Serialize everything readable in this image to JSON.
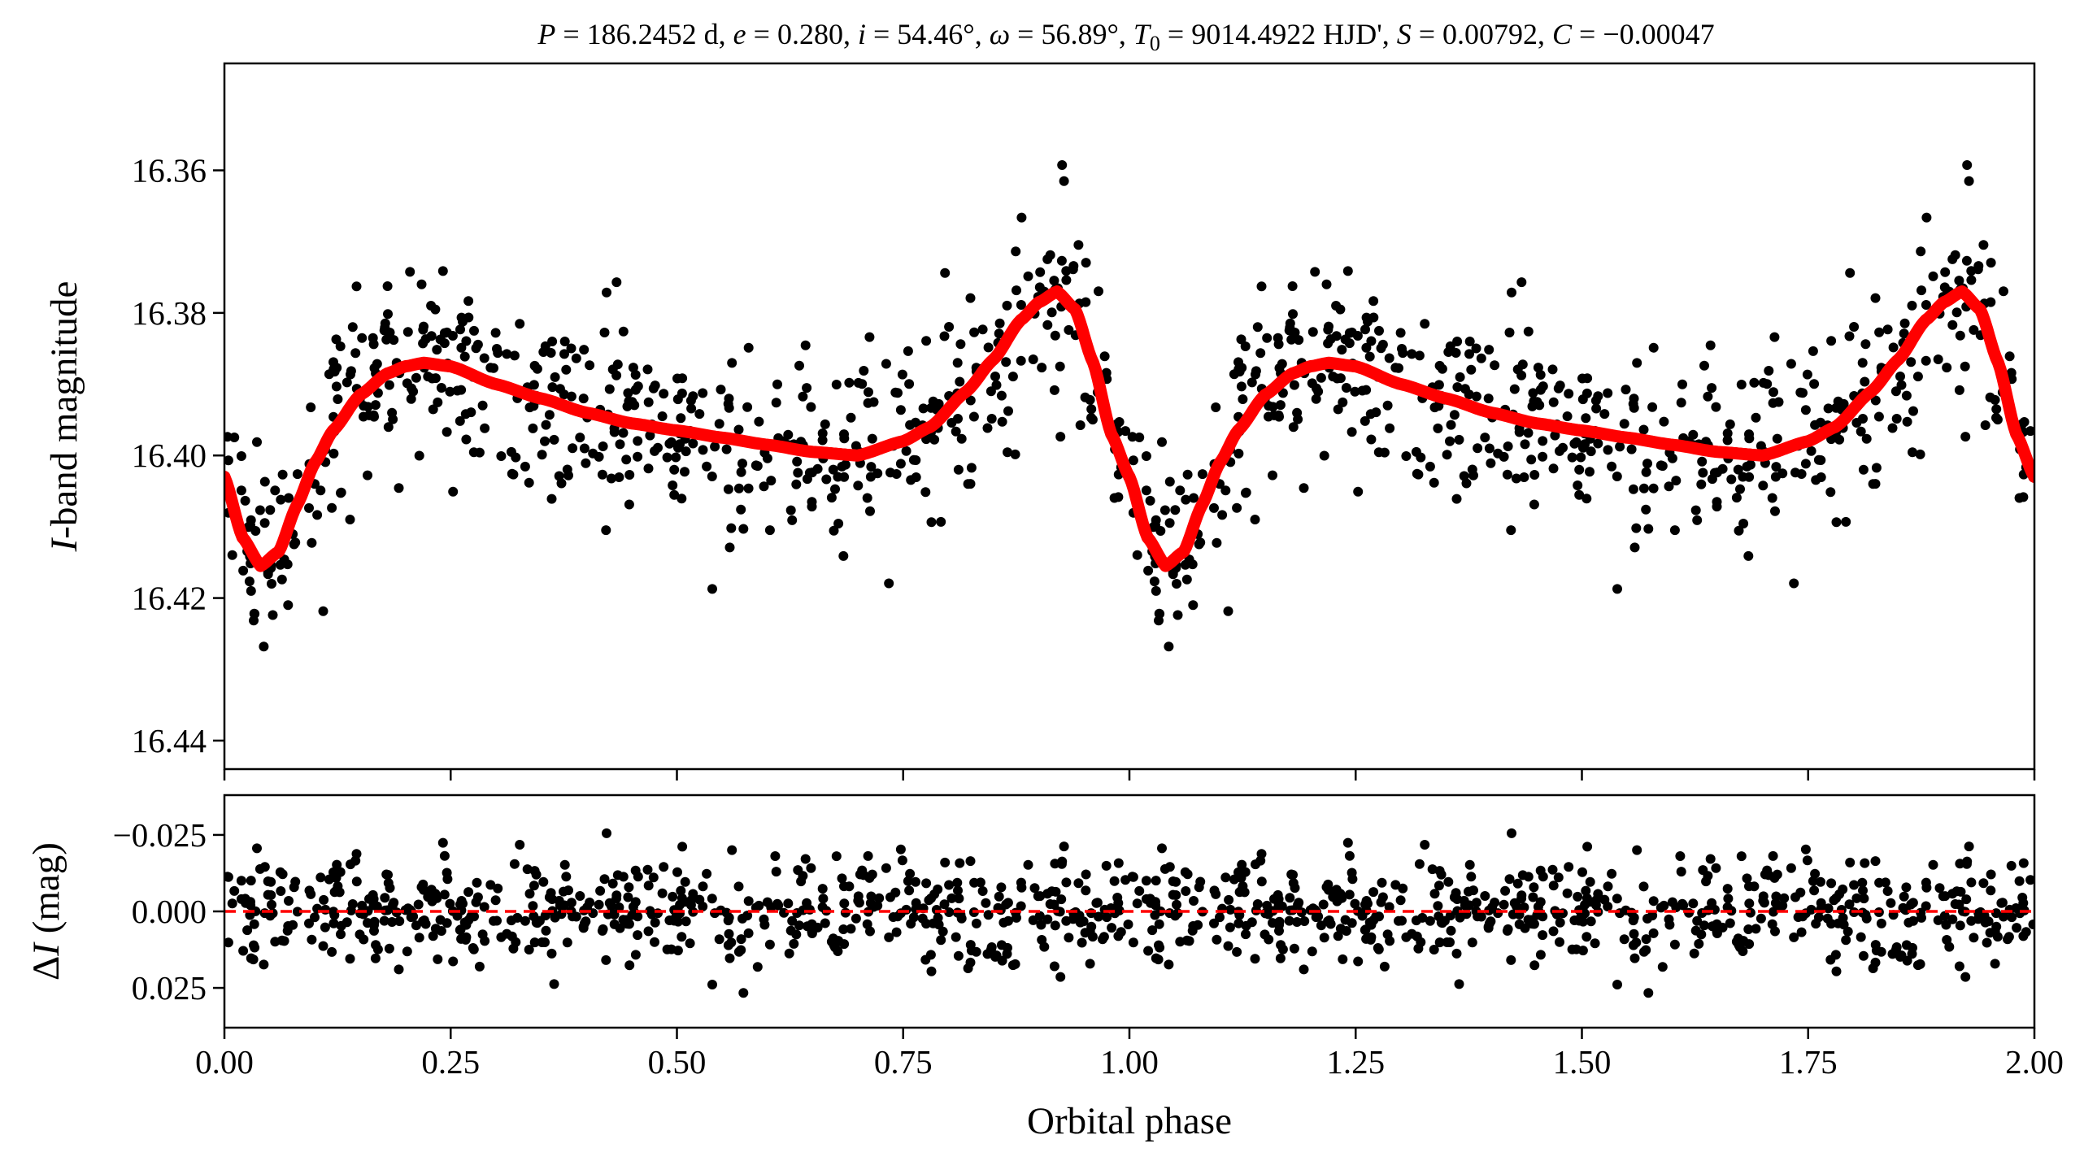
{
  "colors": {
    "points": "#000000",
    "model": "#ff0000",
    "residual_zero": "#ff0000",
    "axes": "#000000",
    "background": "#ffffff"
  },
  "chart_data": [
    {
      "type": "scatter",
      "panel": "top",
      "title": "P = 186.2452 d, e = 0.280, i = 54.46°, ω = 56.89°, T0 = 9014.4922 HJD', S = 0.00792, C = −0.00047",
      "title_parts": {
        "P_sym": "P",
        "P_val": "186.2452 d",
        "e_sym": "e",
        "e_val": "0.280",
        "i_sym": "i",
        "i_val": "54.46°",
        "w_sym": "ω",
        "w_val": "56.89°",
        "T_sym": "T",
        "T_sub": "0",
        "T_val": "9014.4922 HJD'",
        "S_sym": "S",
        "S_val": "0.00792",
        "C_sym": "C",
        "C_val": "−0.00047"
      },
      "ylabel_italic": "I",
      "ylabel_rest": "-band magnitude",
      "xlim": [
        0.0,
        2.0
      ],
      "ylim": [
        16.444,
        16.345
      ],
      "y_inverted": true,
      "yticks": [
        16.36,
        16.38,
        16.4,
        16.42,
        16.44
      ],
      "ytick_labels": [
        "16.36",
        "16.38",
        "16.40",
        "16.42",
        "16.44"
      ],
      "xticks": [
        0.0,
        0.25,
        0.5,
        0.75,
        1.0,
        1.25,
        1.5,
        1.75,
        2.0
      ],
      "n_points_per_cycle": 560,
      "scatter_sigma_mag": 0.0095,
      "model": {
        "name": "fitted light curve",
        "phase": [
          0.0,
          0.02,
          0.04,
          0.06,
          0.08,
          0.1,
          0.12,
          0.15,
          0.18,
          0.2,
          0.22,
          0.25,
          0.3,
          0.35,
          0.4,
          0.45,
          0.5,
          0.55,
          0.6,
          0.65,
          0.7,
          0.75,
          0.78,
          0.82,
          0.85,
          0.88,
          0.9,
          0.92,
          0.94,
          0.96,
          0.98,
          1.0
        ],
        "magnitude": [
          16.403,
          16.4115,
          16.4155,
          16.4135,
          16.407,
          16.401,
          16.3965,
          16.3915,
          16.3885,
          16.3875,
          16.387,
          16.3875,
          16.39,
          16.392,
          16.394,
          16.3955,
          16.3965,
          16.3975,
          16.3985,
          16.3995,
          16.4,
          16.398,
          16.396,
          16.391,
          16.3865,
          16.381,
          16.3785,
          16.377,
          16.3795,
          16.387,
          16.397,
          16.403
        ]
      }
    },
    {
      "type": "scatter",
      "panel": "bottom",
      "ylabel_delta": "Δ",
      "ylabel_italic": "I",
      "ylabel_rest": " (mag)",
      "xlabel": "Orbital phase",
      "xlim": [
        0.0,
        2.0
      ],
      "ylim": [
        0.038,
        -0.038
      ],
      "y_inverted": true,
      "yticks": [
        -0.025,
        0.0,
        0.025
      ],
      "ytick_labels": [
        "−0.025",
        "0.000",
        "0.025"
      ],
      "xticks": [
        0.0,
        0.25,
        0.5,
        0.75,
        1.0,
        1.25,
        1.5,
        1.75,
        2.0
      ],
      "xtick_labels": [
        "0.00",
        "0.25",
        "0.50",
        "0.75",
        "1.00",
        "1.25",
        "1.50",
        "1.75",
        "2.00"
      ],
      "zero_line": {
        "value": 0.0,
        "style": "dashed"
      },
      "residual_sigma_mag": 0.0085
    }
  ]
}
